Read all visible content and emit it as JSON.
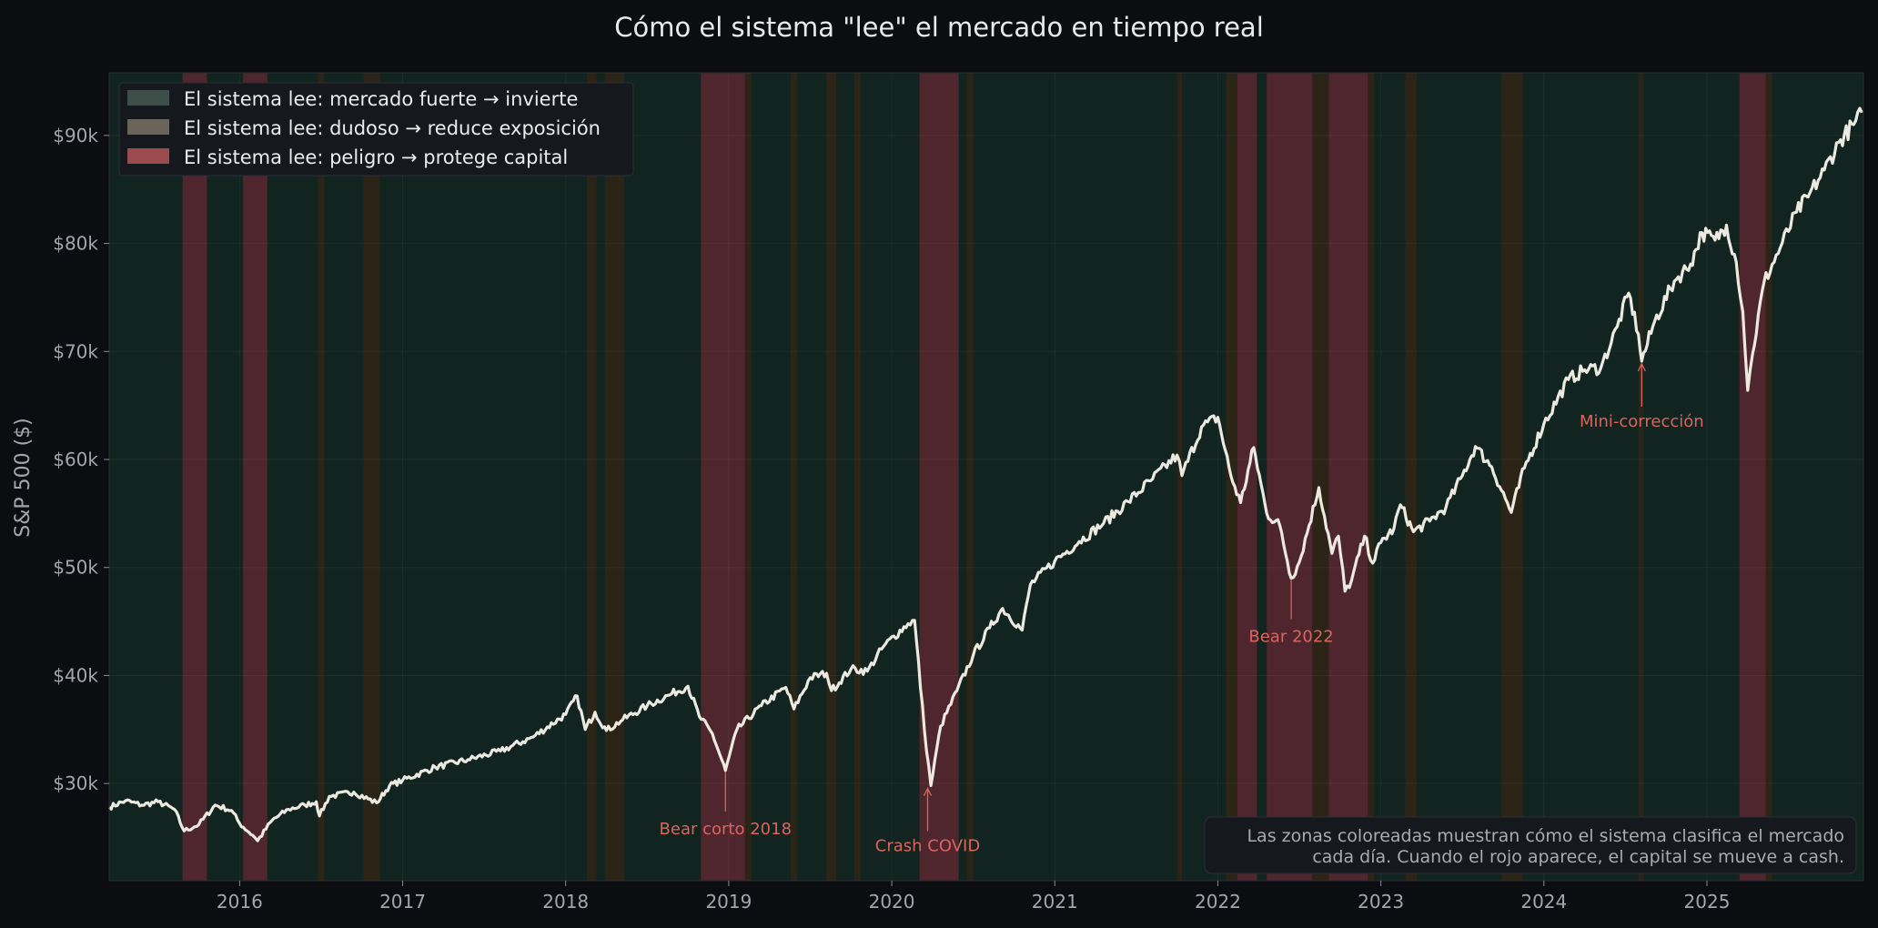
{
  "chart_data": {
    "type": "line",
    "title": "Cómo el sistema \"lee\" el mercado en tiempo real",
    "ylabel": "S&P 500 ($)",
    "xlabel": "",
    "x_range": [
      2015.2,
      2025.96
    ],
    "ylim": [
      21000,
      95800
    ],
    "grid": true,
    "x_ticks": [
      2016,
      2017,
      2018,
      2019,
      2020,
      2021,
      2022,
      2023,
      2024,
      2025
    ],
    "x_tick_labels": [
      "2016",
      "2017",
      "2018",
      "2019",
      "2020",
      "2021",
      "2022",
      "2023",
      "2024",
      "2025"
    ],
    "y_ticks": [
      30000,
      40000,
      50000,
      60000,
      70000,
      80000,
      90000
    ],
    "y_tick_labels": [
      "$30k",
      "$40k",
      "$50k",
      "$60k",
      "$70k",
      "$80k",
      "$90k"
    ],
    "legend_position": "top-left",
    "legend": [
      {
        "label": "El sistema lee: mercado fuerte → invierte",
        "color": "#3d4f49"
      },
      {
        "label": "El sistema lee: dudoso → reduce exposición",
        "color": "#6c6359"
      },
      {
        "label": "El sistema lee: peligro → protege capital",
        "color": "#9b4a4d"
      }
    ],
    "regime_colors": {
      "strong": "#11241f",
      "doubtful": "#2b2417",
      "danger": "#4f262d"
    },
    "line_color": "#ece9e1",
    "background_color": "#0b0d11",
    "zones": [
      {
        "type": "danger",
        "start": 2015.65,
        "end": 2015.8
      },
      {
        "type": "danger",
        "start": 2016.02,
        "end": 2016.17
      },
      {
        "type": "doubtful",
        "start": 2016.48,
        "end": 2016.52
      },
      {
        "type": "doubtful",
        "start": 2016.76,
        "end": 2016.86
      },
      {
        "type": "doubtful",
        "start": 2018.13,
        "end": 2018.19
      },
      {
        "type": "doubtful",
        "start": 2018.24,
        "end": 2018.36
      },
      {
        "type": "danger",
        "start": 2018.83,
        "end": 2019.1
      },
      {
        "type": "doubtful",
        "start": 2019.1,
        "end": 2019.14
      },
      {
        "type": "doubtful",
        "start": 2019.38,
        "end": 2019.42
      },
      {
        "type": "doubtful",
        "start": 2019.6,
        "end": 2019.66
      },
      {
        "type": "doubtful",
        "start": 2019.77,
        "end": 2019.81
      },
      {
        "type": "danger",
        "start": 2020.17,
        "end": 2020.41
      },
      {
        "type": "doubtful",
        "start": 2020.46,
        "end": 2020.5
      },
      {
        "type": "doubtful",
        "start": 2021.75,
        "end": 2021.78
      },
      {
        "type": "doubtful",
        "start": 2022.05,
        "end": 2022.12
      },
      {
        "type": "danger",
        "start": 2022.12,
        "end": 2022.24
      },
      {
        "type": "danger",
        "start": 2022.3,
        "end": 2022.58
      },
      {
        "type": "doubtful",
        "start": 2022.58,
        "end": 2022.68
      },
      {
        "type": "danger",
        "start": 2022.68,
        "end": 2022.92
      },
      {
        "type": "doubtful",
        "start": 2022.92,
        "end": 2022.96
      },
      {
        "type": "doubtful",
        "start": 2023.15,
        "end": 2023.22
      },
      {
        "type": "doubtful",
        "start": 2023.74,
        "end": 2023.87
      },
      {
        "type": "doubtful",
        "start": 2024.58,
        "end": 2024.61
      },
      {
        "type": "danger",
        "start": 2025.2,
        "end": 2025.36
      },
      {
        "type": "doubtful",
        "start": 2025.36,
        "end": 2025.4
      }
    ],
    "series": [
      {
        "values_note": "",
        "points": [
          [
            2015.2,
            27800
          ],
          [
            2015.3,
            28400
          ],
          [
            2015.4,
            28000
          ],
          [
            2015.5,
            28300
          ],
          [
            2015.6,
            27600
          ],
          [
            2015.66,
            25600
          ],
          [
            2015.75,
            26200
          ],
          [
            2015.85,
            28000
          ],
          [
            2015.95,
            27500
          ],
          [
            2016.0,
            26300
          ],
          [
            2016.08,
            25200
          ],
          [
            2016.11,
            24700
          ],
          [
            2016.2,
            26600
          ],
          [
            2016.3,
            27600
          ],
          [
            2016.4,
            28000
          ],
          [
            2016.47,
            28300
          ],
          [
            2016.49,
            27000
          ],
          [
            2016.55,
            28800
          ],
          [
            2016.7,
            29200
          ],
          [
            2016.84,
            28200
          ],
          [
            2016.92,
            29800
          ],
          [
            2017.0,
            30300
          ],
          [
            2017.2,
            31500
          ],
          [
            2017.4,
            32200
          ],
          [
            2017.6,
            33000
          ],
          [
            2017.8,
            34300
          ],
          [
            2018.0,
            36400
          ],
          [
            2018.07,
            38100
          ],
          [
            2018.12,
            35000
          ],
          [
            2018.18,
            36600
          ],
          [
            2018.25,
            34900
          ],
          [
            2018.35,
            35900
          ],
          [
            2018.5,
            37200
          ],
          [
            2018.65,
            38300
          ],
          [
            2018.75,
            39000
          ],
          [
            2018.82,
            36200
          ],
          [
            2018.9,
            34600
          ],
          [
            2018.98,
            31200
          ],
          [
            2019.05,
            35000
          ],
          [
            2019.2,
            37200
          ],
          [
            2019.35,
            38900
          ],
          [
            2019.4,
            36900
          ],
          [
            2019.5,
            39800
          ],
          [
            2019.6,
            40200
          ],
          [
            2019.63,
            38600
          ],
          [
            2019.75,
            40600
          ],
          [
            2019.85,
            40400
          ],
          [
            2019.95,
            42700
          ],
          [
            2020.1,
            44800
          ],
          [
            2020.14,
            45100
          ],
          [
            2020.2,
            35000
          ],
          [
            2020.24,
            29800
          ],
          [
            2020.3,
            35300
          ],
          [
            2020.4,
            38600
          ],
          [
            2020.5,
            41900
          ],
          [
            2020.6,
            44400
          ],
          [
            2020.68,
            46200
          ],
          [
            2020.8,
            44200
          ],
          [
            2020.85,
            48400
          ],
          [
            2021.0,
            50600
          ],
          [
            2021.15,
            52400
          ],
          [
            2021.3,
            54100
          ],
          [
            2021.45,
            56100
          ],
          [
            2021.6,
            58200
          ],
          [
            2021.75,
            60400
          ],
          [
            2021.78,
            58500
          ],
          [
            2021.9,
            63000
          ],
          [
            2022.0,
            63900
          ],
          [
            2022.08,
            58500
          ],
          [
            2022.14,
            56000
          ],
          [
            2022.22,
            61100
          ],
          [
            2022.3,
            55000
          ],
          [
            2022.38,
            53900
          ],
          [
            2022.45,
            49000
          ],
          [
            2022.5,
            50500
          ],
          [
            2022.62,
            57400
          ],
          [
            2022.7,
            51300
          ],
          [
            2022.74,
            52900
          ],
          [
            2022.78,
            47800
          ],
          [
            2022.82,
            48800
          ],
          [
            2022.9,
            52900
          ],
          [
            2022.95,
            50400
          ],
          [
            2023.0,
            52300
          ],
          [
            2023.08,
            53600
          ],
          [
            2023.12,
            55800
          ],
          [
            2023.2,
            53300
          ],
          [
            2023.3,
            54300
          ],
          [
            2023.4,
            55600
          ],
          [
            2023.5,
            58500
          ],
          [
            2023.58,
            61200
          ],
          [
            2023.68,
            59300
          ],
          [
            2023.8,
            55100
          ],
          [
            2023.88,
            59200
          ],
          [
            2024.0,
            63300
          ],
          [
            2024.15,
            67400
          ],
          [
            2024.25,
            68300
          ],
          [
            2024.35,
            68500
          ],
          [
            2024.45,
            72300
          ],
          [
            2024.52,
            75400
          ],
          [
            2024.58,
            71600
          ],
          [
            2024.6,
            69100
          ],
          [
            2024.68,
            72800
          ],
          [
            2024.8,
            76500
          ],
          [
            2024.9,
            78100
          ],
          [
            2024.97,
            81000
          ],
          [
            2025.05,
            80300
          ],
          [
            2025.12,
            81700
          ],
          [
            2025.18,
            78300
          ],
          [
            2025.22,
            73700
          ],
          [
            2025.25,
            66400
          ],
          [
            2025.28,
            69800
          ],
          [
            2025.35,
            76400
          ],
          [
            2025.45,
            79600
          ],
          [
            2025.55,
            82900
          ],
          [
            2025.62,
            84300
          ],
          [
            2025.72,
            86800
          ],
          [
            2025.82,
            89600
          ],
          [
            2025.9,
            91000
          ],
          [
            2025.95,
            92100
          ]
        ]
      }
    ],
    "annotations": [
      {
        "text": "Bear corto 2018",
        "x": 2018.98,
        "y": 31200,
        "direction": "down"
      },
      {
        "text": "Crash COVID",
        "x": 2020.22,
        "y": 29800,
        "direction": "up"
      },
      {
        "text": "Bear 2022",
        "x": 2022.45,
        "y": 49000,
        "direction": "down"
      },
      {
        "text": "Mini-corrección",
        "x": 2024.6,
        "y": 69100,
        "direction": "up"
      }
    ],
    "note": [
      "Las zonas coloreadas muestran cómo el sistema clasifica el mercado",
      "cada día. Cuando el rojo aparece, el capital se mueve a cash."
    ]
  }
}
